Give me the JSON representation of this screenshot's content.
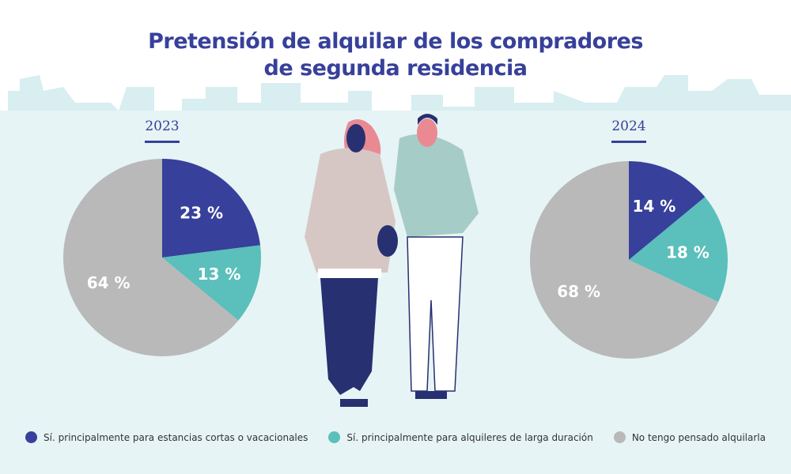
{
  "title_line1": "Pretensión de alquilar de los compradores",
  "title_line2": "de segunda residencia",
  "colors": {
    "navy": "#37409a",
    "teal": "#5bbfbb",
    "gray": "#b9b9b9",
    "background": "#e6f4f5"
  },
  "chart_data": [
    {
      "type": "pie",
      "title": "2023",
      "categories": [
        "Sí. principalmente para estancias cortas o vacacionales",
        "Sí. principalmente para alquileres de larga duración",
        "No tengo pensado alquilarla"
      ],
      "values": [
        23,
        13,
        64
      ],
      "labels": [
        "23 %",
        "13 %",
        "64 %"
      ]
    },
    {
      "type": "pie",
      "title": "2024",
      "categories": [
        "Sí. principalmente para estancias cortas o vacacionales",
        "Sí. principalmente para alquileres de larga duración",
        "No tengo pensado alquilarla"
      ],
      "values": [
        14,
        18,
        68
      ],
      "labels": [
        "14 %",
        "18 %",
        "68 %"
      ]
    }
  ],
  "legend": [
    {
      "label": "Sí. principalmente para estancias cortas o vacacionales",
      "color": "#37409a"
    },
    {
      "label": "Sí. principalmente para alquileres de larga duración",
      "color": "#5bbfbb"
    },
    {
      "label": "No tengo pensado alquilarla",
      "color": "#b9b9b9"
    }
  ]
}
